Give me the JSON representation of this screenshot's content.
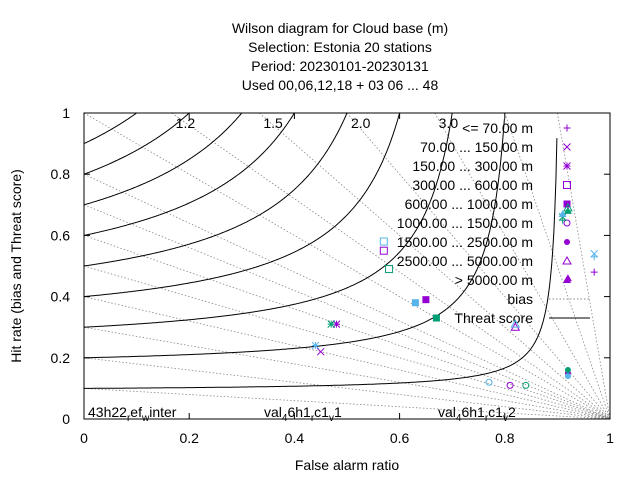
{
  "chart_data": {
    "type": "scatter",
    "title_lines": [
      "Wilson diagram  for Cloud base (m)",
      "Selection: Estonia      20 stations",
      "Period: 20230101-20230131",
      "Used  00,06,12,18  + 03 06 ... 48"
    ],
    "xlabel": "False alarm ratio",
    "ylabel": "Hit rate (bias and Threat score)",
    "xlim": [
      0,
      1
    ],
    "ylim": [
      0,
      1
    ],
    "x_ticks": [
      "0",
      "0.2",
      "0.4",
      "0.6",
      "0.8",
      "1"
    ],
    "y_ticks": [
      "0",
      "0.2",
      "0.4",
      "0.6",
      "0.8",
      "1"
    ],
    "bias_labels": [
      "1.2",
      "1.5",
      "2.0",
      "3.0"
    ],
    "legend_position": "top-right",
    "legend": [
      {
        "label": "<= 70.00 m",
        "marker": "plus"
      },
      {
        "label": "70.00 ... 150.00 m",
        "marker": "cross"
      },
      {
        "label": "150.00 ... 300.00 m",
        "marker": "star"
      },
      {
        "label": "300.00 ... 600.00 m",
        "marker": "square-open"
      },
      {
        "label": "600.00 ... 1000.00 m",
        "marker": "square-filled"
      },
      {
        "label": "1000.00 ... 1500.00 m",
        "marker": "circle-open"
      },
      {
        "label": "1500.00 ... 2500.00 m",
        "marker": "circle-filled"
      },
      {
        "label": "2500.00 ... 5000.00 m",
        "marker": "triangle-open"
      },
      {
        "label": "> 5000.00 m",
        "marker": "triangle-filled"
      },
      {
        "label": "bias",
        "marker": "dotted-line"
      },
      {
        "label": "Threat score",
        "marker": "solid-line"
      }
    ],
    "series": [
      {
        "name": "43h22_ref_winter",
        "color": "#9400d3",
        "points": [
          {
            "class": "<= 70.00 m",
            "x": 0.97,
            "y": 0.48
          },
          {
            "class": "70.00 ... 150.00 m",
            "x": 0.45,
            "y": 0.22
          },
          {
            "class": "150.00 ... 300.00 m",
            "x": 0.48,
            "y": 0.31
          },
          {
            "class": "300.00 ... 600.00 m",
            "x": 0.57,
            "y": 0.55
          },
          {
            "class": "600.00 ... 1000.00 m",
            "x": 0.65,
            "y": 0.39
          },
          {
            "class": "1000.00 ... 1500.00 m",
            "x": 0.81,
            "y": 0.11
          },
          {
            "class": "1500.00 ... 2500.00 m",
            "x": 0.92,
            "y": 0.15
          },
          {
            "class": "2500.00 ... 5000.00 m",
            "x": 0.82,
            "y": 0.3
          },
          {
            "class": "> 5000.00 m",
            "x": 0.92,
            "y": 0.46
          }
        ]
      },
      {
        "name": "val_46h1_rc1_v1",
        "color": "#009e73",
        "points": [
          {
            "class": "<= 70.00 m",
            "x": 0.91,
            "y": 0.65
          },
          {
            "class": "70.00 ... 150.00 m",
            "x": 0.91,
            "y": 0.66
          },
          {
            "class": "150.00 ... 300.00 m",
            "x": 0.47,
            "y": 0.31
          },
          {
            "class": "300.00 ... 600.00 m",
            "x": 0.58,
            "y": 0.49
          },
          {
            "class": "600.00 ... 1000.00 m",
            "x": 0.67,
            "y": 0.33
          },
          {
            "class": "1000.00 ... 1500.00 m",
            "x": 0.84,
            "y": 0.11
          },
          {
            "class": "1500.00 ... 2500.00 m",
            "x": 0.92,
            "y": 0.16
          },
          {
            "class": "2500.00 ... 5000.00 m",
            "x": 0.92,
            "y": 0.69
          },
          {
            "class": "> 5000.00 m",
            "x": 0.92,
            "y": 0.68
          }
        ]
      },
      {
        "name": "val_46h1_rc1_v2",
        "color": "#56b4e9",
        "points": [
          {
            "class": "<= 70.00 m",
            "x": 0.97,
            "y": 0.53
          },
          {
            "class": "70.00 ... 150.00 m",
            "x": 0.97,
            "y": 0.54
          },
          {
            "class": "150.00 ... 300.00 m",
            "x": 0.44,
            "y": 0.24
          },
          {
            "class": "300.00 ... 600.00 m",
            "x": 0.57,
            "y": 0.58
          },
          {
            "class": "600.00 ... 1000.00 m",
            "x": 0.63,
            "y": 0.38
          },
          {
            "class": "1000.00 ... 1500.00 m",
            "x": 0.77,
            "y": 0.12
          },
          {
            "class": "1500.00 ... 2500.00 m",
            "x": 0.92,
            "y": 0.14
          },
          {
            "class": "2500.00 ... 5000.00 m",
            "x": 0.82,
            "y": 0.31
          },
          {
            "class": "> 5000.00 m",
            "x": 0.91,
            "y": 0.67
          }
        ]
      }
    ],
    "series_labels": [
      {
        "text": "43h22_ref_winter",
        "parts": [
          [
            "43h22",
            "base"
          ],
          [
            "r",
            "sub"
          ],
          [
            "ef",
            "base"
          ],
          [
            "w",
            "sub"
          ],
          [
            "inter",
            "base"
          ]
        ]
      },
      {
        "text": "val_46h1_rc1_v1",
        "parts": [
          [
            "val",
            "base"
          ],
          [
            "4",
            "sub"
          ],
          [
            "6h1",
            "base"
          ],
          [
            "r",
            "sub"
          ],
          [
            "c1",
            "base"
          ],
          [
            "v",
            "sub"
          ],
          [
            "1",
            "base"
          ]
        ]
      },
      {
        "text": "val_46h1_rc1_v2",
        "parts": [
          [
            "val",
            "base"
          ],
          [
            "4",
            "sub"
          ],
          [
            "6h1",
            "base"
          ],
          [
            "r",
            "sub"
          ],
          [
            "c1",
            "base"
          ],
          [
            "v",
            "sub"
          ],
          [
            "2",
            "base"
          ]
        ]
      }
    ]
  }
}
